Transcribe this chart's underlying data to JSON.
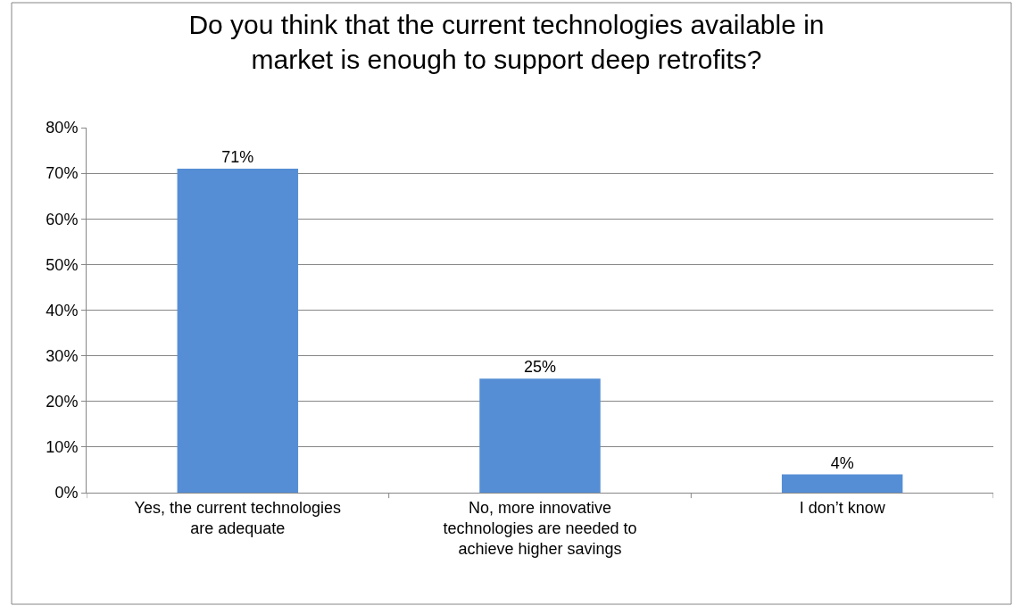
{
  "chart_data": {
    "type": "bar",
    "title": "Do you think that the current technologies available in\nmarket is enough to support deep retrofits?",
    "categories": [
      "Yes, the current technologies\nare adequate",
      "No, more innovative\ntechnologies are needed to\nachieve higher savings",
      "I don’t know"
    ],
    "values": [
      71,
      25,
      4
    ],
    "value_labels": [
      "71%",
      "25%",
      "4%"
    ],
    "color": "#558ed5",
    "ylim": [
      0,
      80
    ],
    "yticks": [
      {
        "value": 0,
        "label": "0%"
      },
      {
        "value": 10,
        "label": "10%"
      },
      {
        "value": 20,
        "label": "20%"
      },
      {
        "value": 30,
        "label": "30%"
      },
      {
        "value": 40,
        "label": "40%"
      },
      {
        "value": 50,
        "label": "50%"
      },
      {
        "value": 60,
        "label": "60%"
      },
      {
        "value": 70,
        "label": "70%"
      },
      {
        "value": 80,
        "label": "80%"
      }
    ],
    "grid": "y",
    "legend": false
  }
}
